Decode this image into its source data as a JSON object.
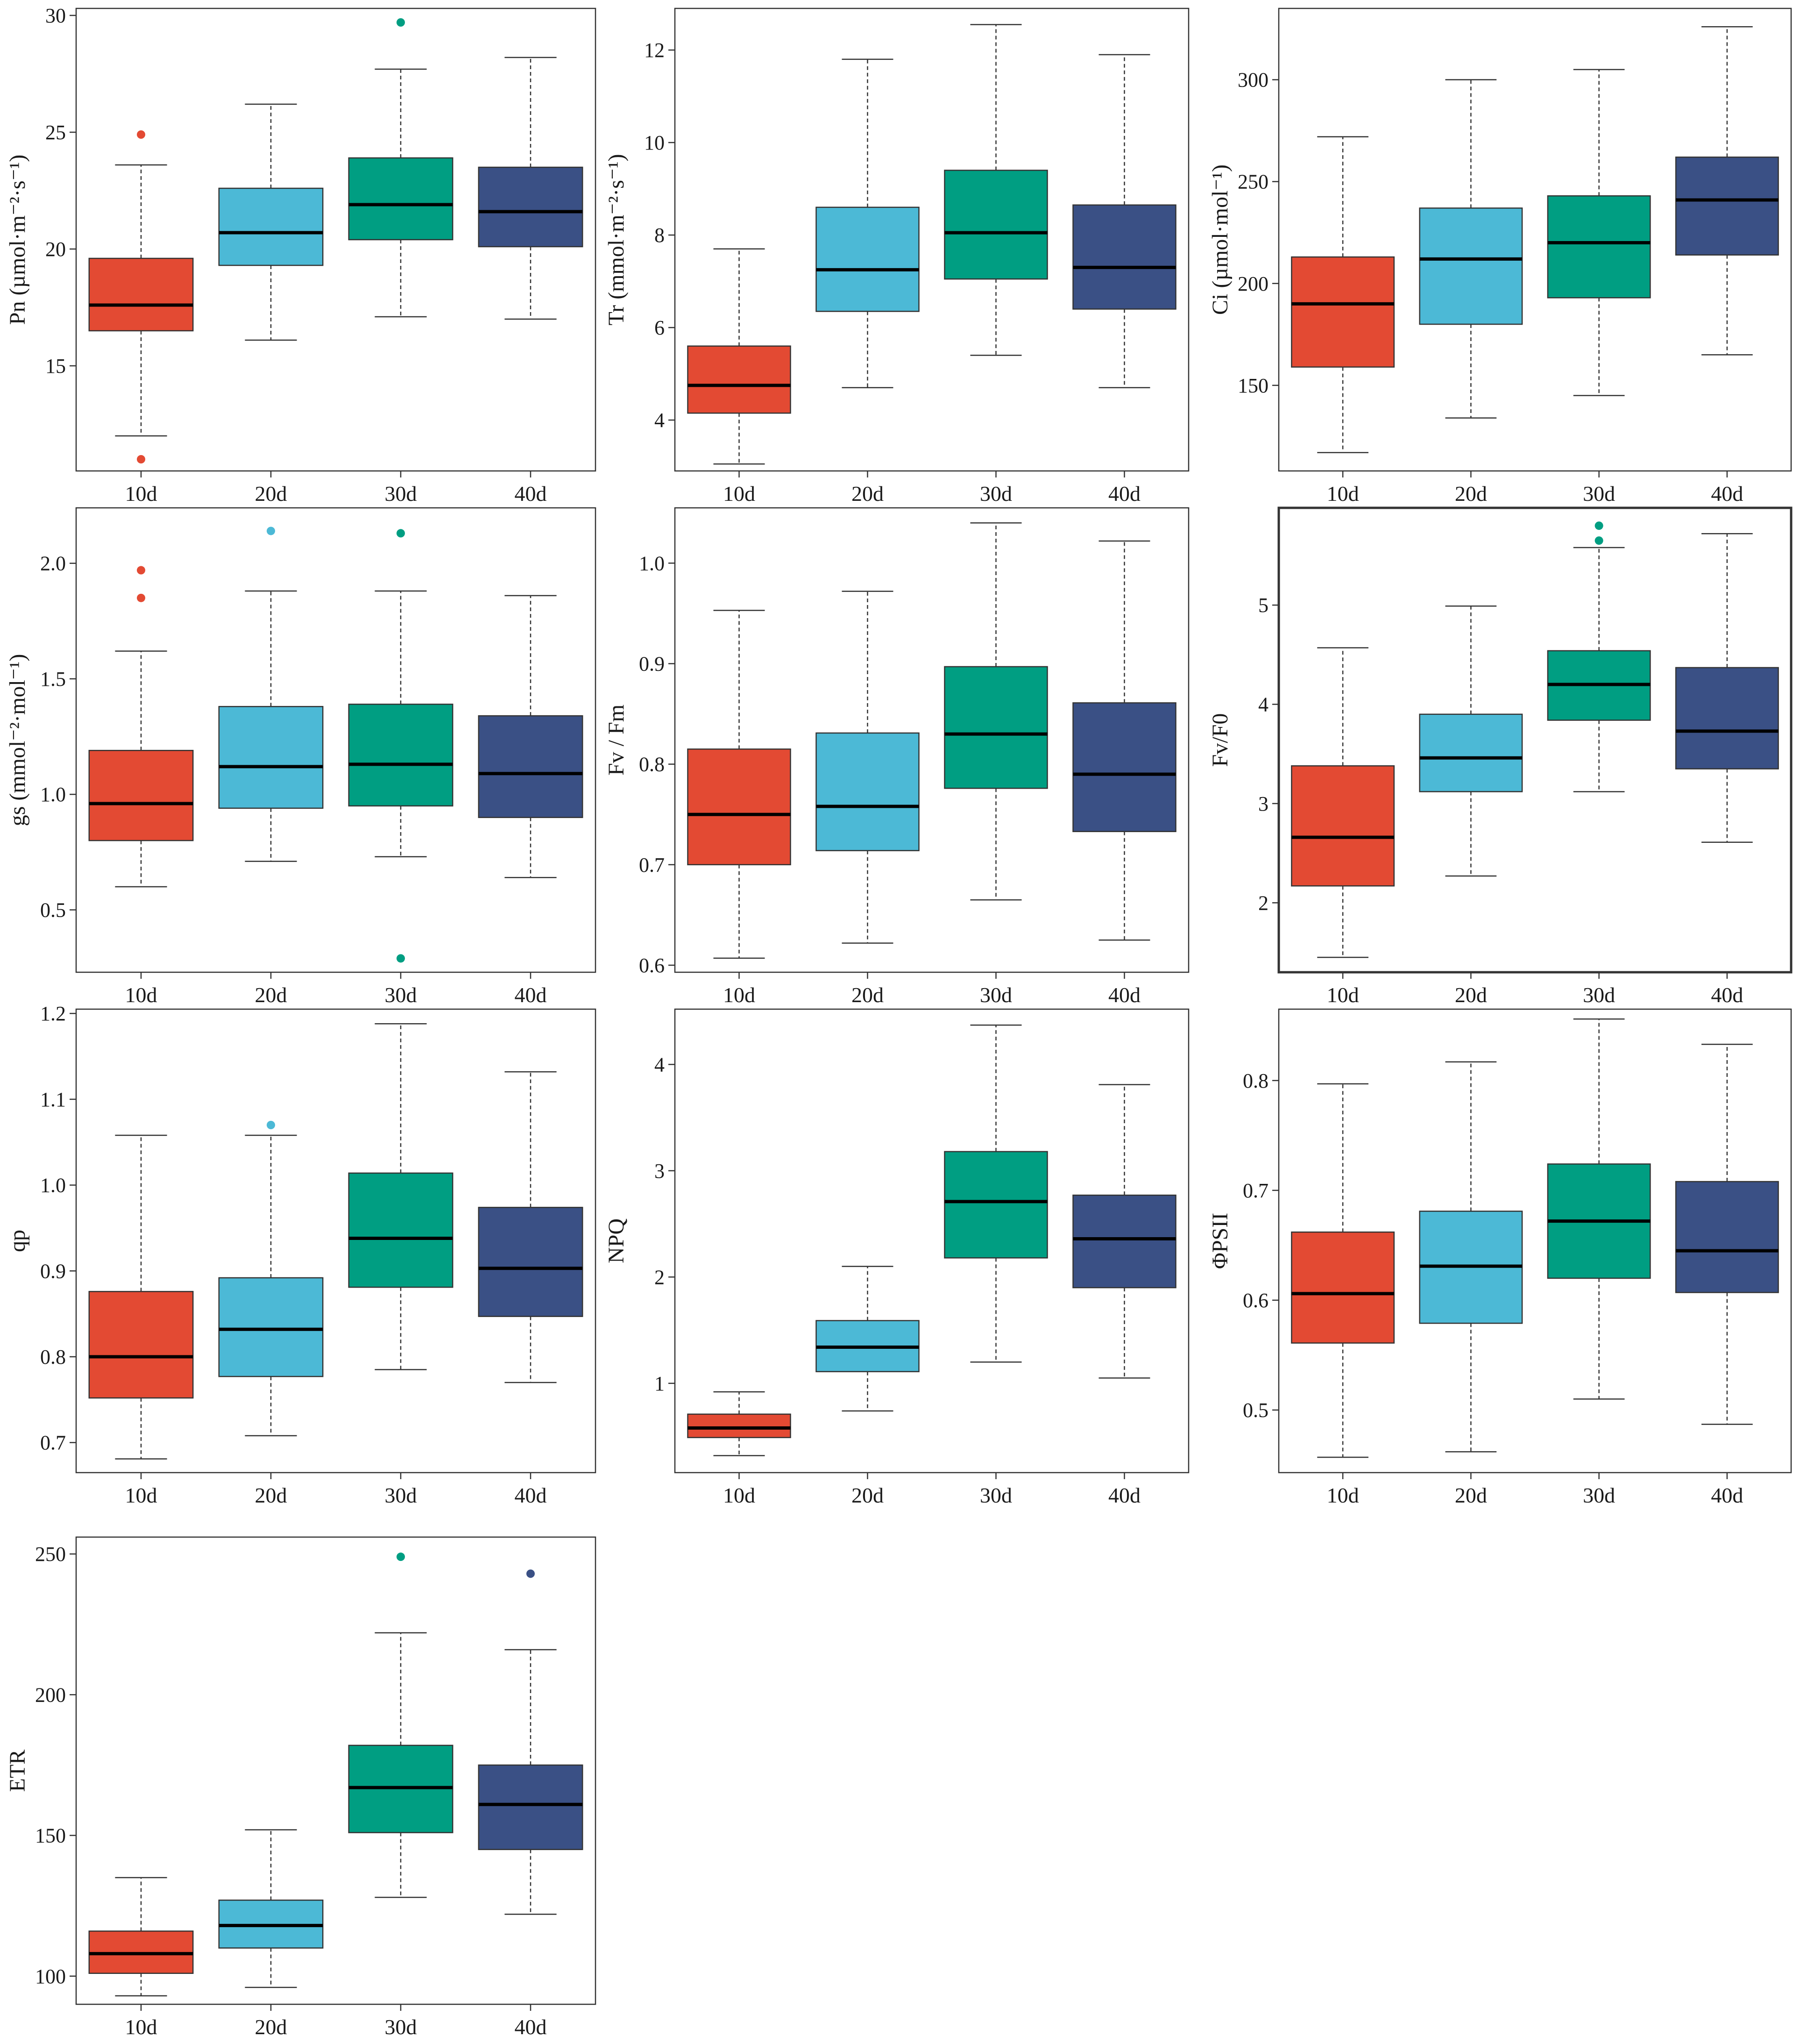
{
  "figure": {
    "categories": [
      "10d",
      "20d",
      "30d",
      "40d"
    ]
  },
  "colors": {
    "10d": "#e34a33",
    "20d": "#4cb9d6",
    "30d": "#009e82",
    "40d": "#3a5085"
  },
  "chart_data": [
    {
      "type": "box",
      "id": "pn",
      "ylabel": "Pn (µmol·m⁻²·s⁻¹)",
      "ylim": [
        10.5,
        30.3
      ],
      "ticks": [
        15,
        20,
        25,
        30
      ],
      "categories": [
        "10d",
        "20d",
        "30d",
        "40d"
      ],
      "boxes": [
        {
          "category": "10d",
          "whisker_low": 12.0,
          "q1": 16.5,
          "median": 17.6,
          "q3": 19.6,
          "whisker_high": 23.6,
          "outliers": [
            24.9,
            11.0
          ]
        },
        {
          "category": "20d",
          "whisker_low": 16.1,
          "q1": 19.3,
          "median": 20.7,
          "q3": 22.6,
          "whisker_high": 26.2,
          "outliers": []
        },
        {
          "category": "30d",
          "whisker_low": 17.1,
          "q1": 20.4,
          "median": 21.9,
          "q3": 23.9,
          "whisker_high": 27.7,
          "outliers": [
            29.7
          ]
        },
        {
          "category": "40d",
          "whisker_low": 17.0,
          "q1": 20.1,
          "median": 21.6,
          "q3": 23.5,
          "whisker_high": 28.2,
          "outliers": []
        }
      ]
    },
    {
      "type": "box",
      "id": "tr",
      "ylabel": "Tr (mmol·m⁻²·s⁻¹)",
      "ylim": [
        2.9,
        12.9
      ],
      "ticks": [
        4,
        6,
        8,
        10,
        12
      ],
      "categories": [
        "10d",
        "20d",
        "30d",
        "40d"
      ],
      "boxes": [
        {
          "category": "10d",
          "whisker_low": 3.05,
          "q1": 4.15,
          "median": 4.75,
          "q3": 5.6,
          "whisker_high": 7.7,
          "outliers": []
        },
        {
          "category": "20d",
          "whisker_low": 4.7,
          "q1": 6.35,
          "median": 7.25,
          "q3": 8.6,
          "whisker_high": 11.8,
          "outliers": []
        },
        {
          "category": "30d",
          "whisker_low": 5.4,
          "q1": 7.05,
          "median": 8.05,
          "q3": 9.4,
          "whisker_high": 12.55,
          "outliers": []
        },
        {
          "category": "40d",
          "whisker_low": 4.7,
          "q1": 6.4,
          "median": 7.3,
          "q3": 8.65,
          "whisker_high": 11.9,
          "outliers": []
        }
      ]
    },
    {
      "type": "box",
      "id": "ci",
      "ylabel": "Ci (µmol·mol⁻¹)",
      "ylim": [
        108,
        335
      ],
      "ticks": [
        150,
        200,
        250,
        300
      ],
      "categories": [
        "10d",
        "20d",
        "30d",
        "40d"
      ],
      "boxes": [
        {
          "category": "10d",
          "whisker_low": 117,
          "q1": 159,
          "median": 190,
          "q3": 213,
          "whisker_high": 272,
          "outliers": []
        },
        {
          "category": "20d",
          "whisker_low": 134,
          "q1": 180,
          "median": 212,
          "q3": 237,
          "whisker_high": 300,
          "outliers": []
        },
        {
          "category": "30d",
          "whisker_low": 145,
          "q1": 193,
          "median": 220,
          "q3": 243,
          "whisker_high": 305,
          "outliers": []
        },
        {
          "category": "40d",
          "whisker_low": 165,
          "q1": 214,
          "median": 241,
          "q3": 262,
          "whisker_high": 326,
          "outliers": []
        }
      ]
    },
    {
      "type": "box",
      "id": "gs",
      "ylabel": "gs (mmol⁻²·mol⁻¹)",
      "ylim": [
        0.23,
        2.24
      ],
      "ticks": [
        0.5,
        1.0,
        1.5,
        2.0
      ],
      "categories": [
        "10d",
        "20d",
        "30d",
        "40d"
      ],
      "boxes": [
        {
          "category": "10d",
          "whisker_low": 0.6,
          "q1": 0.8,
          "median": 0.96,
          "q3": 1.19,
          "whisker_high": 1.62,
          "outliers": [
            1.97,
            1.85
          ]
        },
        {
          "category": "20d",
          "whisker_low": 0.71,
          "q1": 0.94,
          "median": 1.12,
          "q3": 1.38,
          "whisker_high": 1.88,
          "outliers": [
            2.14
          ]
        },
        {
          "category": "30d",
          "whisker_low": 0.73,
          "q1": 0.95,
          "median": 1.13,
          "q3": 1.39,
          "whisker_high": 1.88,
          "outliers": [
            2.13,
            0.29
          ]
        },
        {
          "category": "40d",
          "whisker_low": 0.64,
          "q1": 0.9,
          "median": 1.09,
          "q3": 1.34,
          "whisker_high": 1.86,
          "outliers": []
        }
      ]
    },
    {
      "type": "box",
      "id": "fvfm",
      "ylabel": "Fv / Fm",
      "ylim": [
        0.593,
        1.055
      ],
      "ticks": [
        0.6,
        0.7,
        0.8,
        0.9,
        1.0
      ],
      "categories": [
        "10d",
        "20d",
        "30d",
        "40d"
      ],
      "boxes": [
        {
          "category": "10d",
          "whisker_low": 0.607,
          "q1": 0.7,
          "median": 0.75,
          "q3": 0.815,
          "whisker_high": 0.953,
          "outliers": []
        },
        {
          "category": "20d",
          "whisker_low": 0.622,
          "q1": 0.714,
          "median": 0.758,
          "q3": 0.831,
          "whisker_high": 0.972,
          "outliers": []
        },
        {
          "category": "30d",
          "whisker_low": 0.665,
          "q1": 0.776,
          "median": 0.83,
          "q3": 0.897,
          "whisker_high": 1.04,
          "outliers": []
        },
        {
          "category": "40d",
          "whisker_low": 0.625,
          "q1": 0.733,
          "median": 0.79,
          "q3": 0.861,
          "whisker_high": 1.022,
          "outliers": []
        }
      ]
    },
    {
      "type": "box",
      "id": "fvf0",
      "ylabel": "Fv/F0",
      "ylim": [
        1.3,
        5.98
      ],
      "ticks": [
        2,
        3,
        4,
        5
      ],
      "categories": [
        "10d",
        "20d",
        "30d",
        "40d"
      ],
      "boxes": [
        {
          "category": "10d",
          "whisker_low": 1.45,
          "q1": 2.17,
          "median": 2.66,
          "q3": 3.38,
          "whisker_high": 4.57,
          "outliers": []
        },
        {
          "category": "20d",
          "whisker_low": 2.27,
          "q1": 3.12,
          "median": 3.46,
          "q3": 3.9,
          "whisker_high": 4.99,
          "outliers": []
        },
        {
          "category": "30d",
          "whisker_low": 3.12,
          "q1": 3.84,
          "median": 4.2,
          "q3": 4.54,
          "whisker_high": 5.58,
          "outliers": [
            5.8,
            5.65
          ]
        },
        {
          "category": "40d",
          "whisker_low": 2.61,
          "q1": 3.35,
          "median": 3.73,
          "q3": 4.37,
          "whisker_high": 5.72,
          "outliers": []
        }
      ]
    },
    {
      "type": "box",
      "id": "qp",
      "ylabel": "qp",
      "ylim": [
        0.665,
        1.205
      ],
      "ticks": [
        0.7,
        0.8,
        0.9,
        1.0,
        1.1,
        1.2
      ],
      "categories": [
        "10d",
        "20d",
        "30d",
        "40d"
      ],
      "boxes": [
        {
          "category": "10d",
          "whisker_low": 0.681,
          "q1": 0.752,
          "median": 0.8,
          "q3": 0.876,
          "whisker_high": 1.058,
          "outliers": []
        },
        {
          "category": "20d",
          "whisker_low": 0.708,
          "q1": 0.777,
          "median": 0.832,
          "q3": 0.892,
          "whisker_high": 1.058,
          "outliers": [
            1.07
          ]
        },
        {
          "category": "30d",
          "whisker_low": 0.785,
          "q1": 0.881,
          "median": 0.938,
          "q3": 1.014,
          "whisker_high": 1.188,
          "outliers": []
        },
        {
          "category": "40d",
          "whisker_low": 0.77,
          "q1": 0.847,
          "median": 0.903,
          "q3": 0.974,
          "whisker_high": 1.132,
          "outliers": []
        }
      ]
    },
    {
      "type": "box",
      "id": "npq",
      "ylabel": "NPQ",
      "ylim": [
        0.16,
        4.52
      ],
      "ticks": [
        1,
        2,
        3,
        4
      ],
      "categories": [
        "10d",
        "20d",
        "30d",
        "40d"
      ],
      "boxes": [
        {
          "category": "10d",
          "whisker_low": 0.32,
          "q1": 0.49,
          "median": 0.58,
          "q3": 0.71,
          "whisker_high": 0.92,
          "outliers": []
        },
        {
          "category": "20d",
          "whisker_low": 0.74,
          "q1": 1.11,
          "median": 1.34,
          "q3": 1.59,
          "whisker_high": 2.1,
          "outliers": []
        },
        {
          "category": "30d",
          "whisker_low": 1.2,
          "q1": 2.18,
          "median": 2.71,
          "q3": 3.18,
          "whisker_high": 4.37,
          "outliers": []
        },
        {
          "category": "40d",
          "whisker_low": 1.05,
          "q1": 1.9,
          "median": 2.36,
          "q3": 2.77,
          "whisker_high": 3.81,
          "outliers": []
        }
      ]
    },
    {
      "type": "box",
      "id": "phipsii",
      "ylabel": "ΦPSII",
      "ylim": [
        0.443,
        0.865
      ],
      "ticks": [
        0.5,
        0.6,
        0.7,
        0.8
      ],
      "categories": [
        "10d",
        "20d",
        "30d",
        "40d"
      ],
      "boxes": [
        {
          "category": "10d",
          "whisker_low": 0.457,
          "q1": 0.561,
          "median": 0.606,
          "q3": 0.662,
          "whisker_high": 0.797,
          "outliers": []
        },
        {
          "category": "20d",
          "whisker_low": 0.462,
          "q1": 0.579,
          "median": 0.631,
          "q3": 0.681,
          "whisker_high": 0.817,
          "outliers": []
        },
        {
          "category": "30d",
          "whisker_low": 0.51,
          "q1": 0.62,
          "median": 0.672,
          "q3": 0.724,
          "whisker_high": 0.856,
          "outliers": []
        },
        {
          "category": "40d",
          "whisker_low": 0.487,
          "q1": 0.607,
          "median": 0.645,
          "q3": 0.708,
          "whisker_high": 0.833,
          "outliers": []
        }
      ]
    },
    {
      "type": "box",
      "id": "etr",
      "ylabel": "ETR",
      "ylim": [
        90,
        256
      ],
      "ticks": [
        100,
        150,
        200,
        250
      ],
      "categories": [
        "10d",
        "20d",
        "30d",
        "40d"
      ],
      "boxes": [
        {
          "category": "10d",
          "whisker_low": 93,
          "q1": 101,
          "median": 108,
          "q3": 116,
          "whisker_high": 135,
          "outliers": []
        },
        {
          "category": "20d",
          "whisker_low": 96,
          "q1": 110,
          "median": 118,
          "q3": 127,
          "whisker_high": 152,
          "outliers": []
        },
        {
          "category": "30d",
          "whisker_low": 128,
          "q1": 151,
          "median": 167,
          "q3": 182,
          "whisker_high": 222,
          "outliers": [
            249
          ]
        },
        {
          "category": "40d",
          "whisker_low": 122,
          "q1": 145,
          "median": 161,
          "q3": 175,
          "whisker_high": 216,
          "outliers": [
            243
          ]
        }
      ]
    }
  ]
}
